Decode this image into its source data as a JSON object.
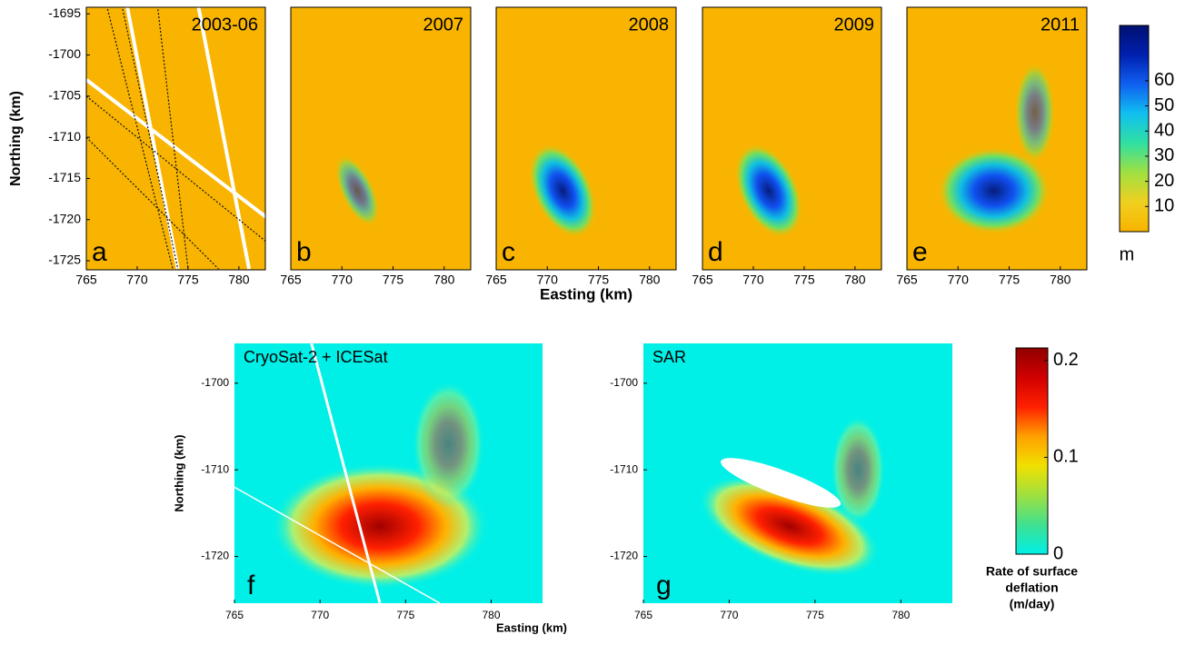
{
  "chart_data": [
    {
      "type": "heatmap",
      "panel": "a",
      "title": "2003-06",
      "ylabel": "Northing (km)",
      "xlim": [
        765,
        782.6
      ],
      "ylim": [
        -1726.1,
        -1694.2
      ],
      "xticks": [
        765,
        770,
        775,
        780
      ],
      "yticks": [
        -1725,
        -1720,
        -1715,
        -1710,
        -1705,
        -1700,
        -1695
      ]
    },
    {
      "type": "heatmap",
      "panel": "b",
      "title": "2007",
      "xlim": [
        765,
        782.6
      ],
      "ylim": [
        -1726.1,
        -1694.2
      ],
      "xticks": [
        765,
        770,
        775,
        780
      ]
    },
    {
      "type": "heatmap",
      "panel": "c",
      "title": "2008",
      "xlabel": "Easting (km)",
      "xlim": [
        765,
        782.6
      ],
      "ylim": [
        -1726.1,
        -1694.2
      ],
      "xticks": [
        765,
        770,
        775,
        780
      ]
    },
    {
      "type": "heatmap",
      "panel": "d",
      "title": "2009",
      "xlim": [
        765,
        782.6
      ],
      "ylim": [
        -1726.1,
        -1694.2
      ],
      "xticks": [
        765,
        770,
        775,
        780
      ]
    },
    {
      "type": "heatmap",
      "panel": "e",
      "title": "2011",
      "xlim": [
        765,
        782.6
      ],
      "ylim": [
        -1726.1,
        -1694.2
      ],
      "xticks": [
        765,
        770,
        775,
        780
      ]
    },
    {
      "type": "heatmap",
      "panel": "f",
      "title": "CryoSat-2 + ICESat",
      "xlabel": "Easting (km)",
      "ylabel": "Northing (km)",
      "xlim": [
        765,
        783
      ],
      "ylim": [
        -1725.4,
        -1695.4
      ],
      "xticks": [
        765,
        770,
        775,
        780
      ],
      "yticks": [
        -1720,
        -1710,
        -1700
      ]
    },
    {
      "type": "heatmap",
      "panel": "g",
      "title": "SAR",
      "xlim": [
        765,
        783
      ],
      "ylim": [
        -1725.4,
        -1695.4
      ],
      "xticks": [
        765,
        770,
        775,
        780
      ],
      "yticks": [
        -1720,
        -1710,
        -1700
      ]
    },
    {
      "type": "colorbar",
      "label": [
        "m"
      ],
      "ylim": [
        0,
        82
      ],
      "yticks": [
        10,
        20,
        30,
        40,
        50,
        60
      ],
      "colors": [
        "#f8b400",
        "#f0d020",
        "#a0e040",
        "#30e0a0",
        "#10c0f0",
        "#1060f0",
        "#0020b0",
        "#001070"
      ]
    },
    {
      "type": "colorbar",
      "label": [
        "Rate of surface",
        "deflation",
        "(m/day)"
      ],
      "ylim": [
        0,
        0.213
      ],
      "yticks": [
        0,
        0.1,
        0.2
      ],
      "colors": [
        "#00f0e8",
        "#40e090",
        "#a0e040",
        "#f0e000",
        "#ffa000",
        "#ff2000",
        "#d00000",
        "#900000"
      ]
    }
  ]
}
